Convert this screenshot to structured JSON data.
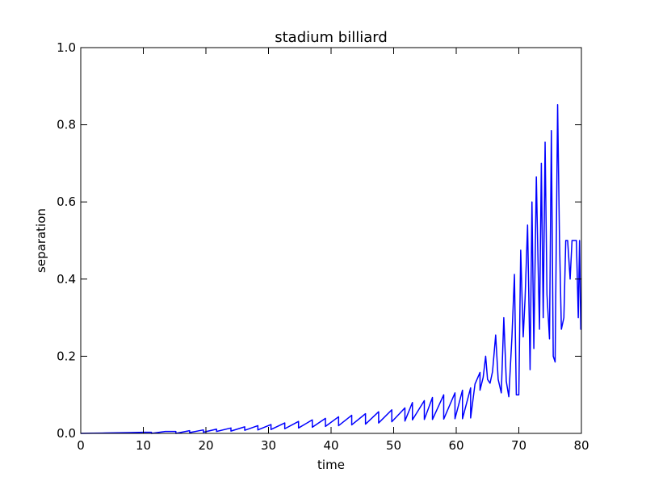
{
  "chart_data": {
    "type": "line",
    "title": "stadium billiard",
    "xlabel": "time",
    "ylabel": "separation",
    "xlim": [
      0,
      80
    ],
    "ylim": [
      0.0,
      1.0
    ],
    "xticks": [
      0,
      10,
      20,
      30,
      40,
      50,
      60,
      70,
      80
    ],
    "xtick_labels": [
      "0",
      "10",
      "20",
      "30",
      "40",
      "50",
      "60",
      "70",
      "80"
    ],
    "yticks": [
      0.0,
      0.2,
      0.4,
      0.6,
      0.8,
      1.0
    ],
    "ytick_labels": [
      "0.0",
      "0.2",
      "0.4",
      "0.6",
      "0.8",
      "1.0"
    ],
    "grid": false,
    "line_color": "#0000ff",
    "series": [
      {
        "x": [
          0,
          2,
          4,
          6,
          8,
          10,
          11.3,
          11.3,
          13.5,
          15.2,
          15.2,
          17.4,
          17.4,
          19.6,
          19.6,
          21.7,
          21.7,
          24.0,
          24.0,
          26.2,
          26.2,
          28.3,
          28.3,
          30.4,
          30.4,
          32.6,
          32.6,
          34.8,
          34.8,
          37.0,
          37.0,
          39.1,
          39.1,
          41.2,
          41.2,
          43.3,
          43.3,
          45.5,
          45.5,
          47.6,
          47.6,
          49.7,
          49.7,
          51.8,
          51.8,
          53.0,
          53.0,
          54.9,
          54.9,
          56.2,
          56.2,
          58.0,
          58.0,
          59.8,
          59.8,
          61.0,
          61.0,
          62.3,
          62.3,
          63.0,
          63.8,
          63.8,
          64.3,
          64.7,
          65.0,
          65.4,
          65.8,
          66.3,
          66.7,
          67.2,
          67.6,
          68.0,
          68.4,
          68.9,
          69.3,
          69.6,
          70.0,
          70.3,
          70.7,
          71.0,
          71.4,
          71.8,
          72.1,
          72.4,
          72.8,
          73.0,
          73.3,
          73.6,
          73.9,
          74.2,
          74.5,
          74.9,
          75.2,
          75.5,
          75.8,
          76.2,
          76.5,
          76.8,
          77.2,
          77.5,
          77.8,
          78.2,
          78.5,
          78.8,
          79.2,
          79.5,
          79.7,
          79.9,
          80.0
        ],
        "y": [
          0.0,
          0.0005,
          0.001,
          0.0015,
          0.002,
          0.003,
          0.003,
          0.0,
          0.005,
          0.005,
          0.0,
          0.007,
          0.002,
          0.009,
          0.003,
          0.011,
          0.005,
          0.014,
          0.006,
          0.017,
          0.008,
          0.02,
          0.009,
          0.023,
          0.01,
          0.027,
          0.012,
          0.031,
          0.014,
          0.035,
          0.016,
          0.039,
          0.018,
          0.043,
          0.02,
          0.047,
          0.022,
          0.051,
          0.024,
          0.056,
          0.027,
          0.061,
          0.03,
          0.066,
          0.032,
          0.08,
          0.035,
          0.085,
          0.036,
          0.093,
          0.036,
          0.1,
          0.037,
          0.105,
          0.038,
          0.112,
          0.038,
          0.118,
          0.04,
          0.128,
          0.158,
          0.112,
          0.145,
          0.2,
          0.14,
          0.13,
          0.16,
          0.255,
          0.14,
          0.105,
          0.3,
          0.135,
          0.095,
          0.25,
          0.412,
          0.1,
          0.1,
          0.475,
          0.25,
          0.35,
          0.54,
          0.165,
          0.6,
          0.22,
          0.665,
          0.5,
          0.27,
          0.7,
          0.3,
          0.755,
          0.36,
          0.245,
          0.785,
          0.2,
          0.185,
          0.852,
          0.5,
          0.27,
          0.3,
          0.5,
          0.5,
          0.4,
          0.5,
          0.5,
          0.5,
          0.3,
          0.5,
          0.27,
          0.27
        ]
      }
    ]
  }
}
